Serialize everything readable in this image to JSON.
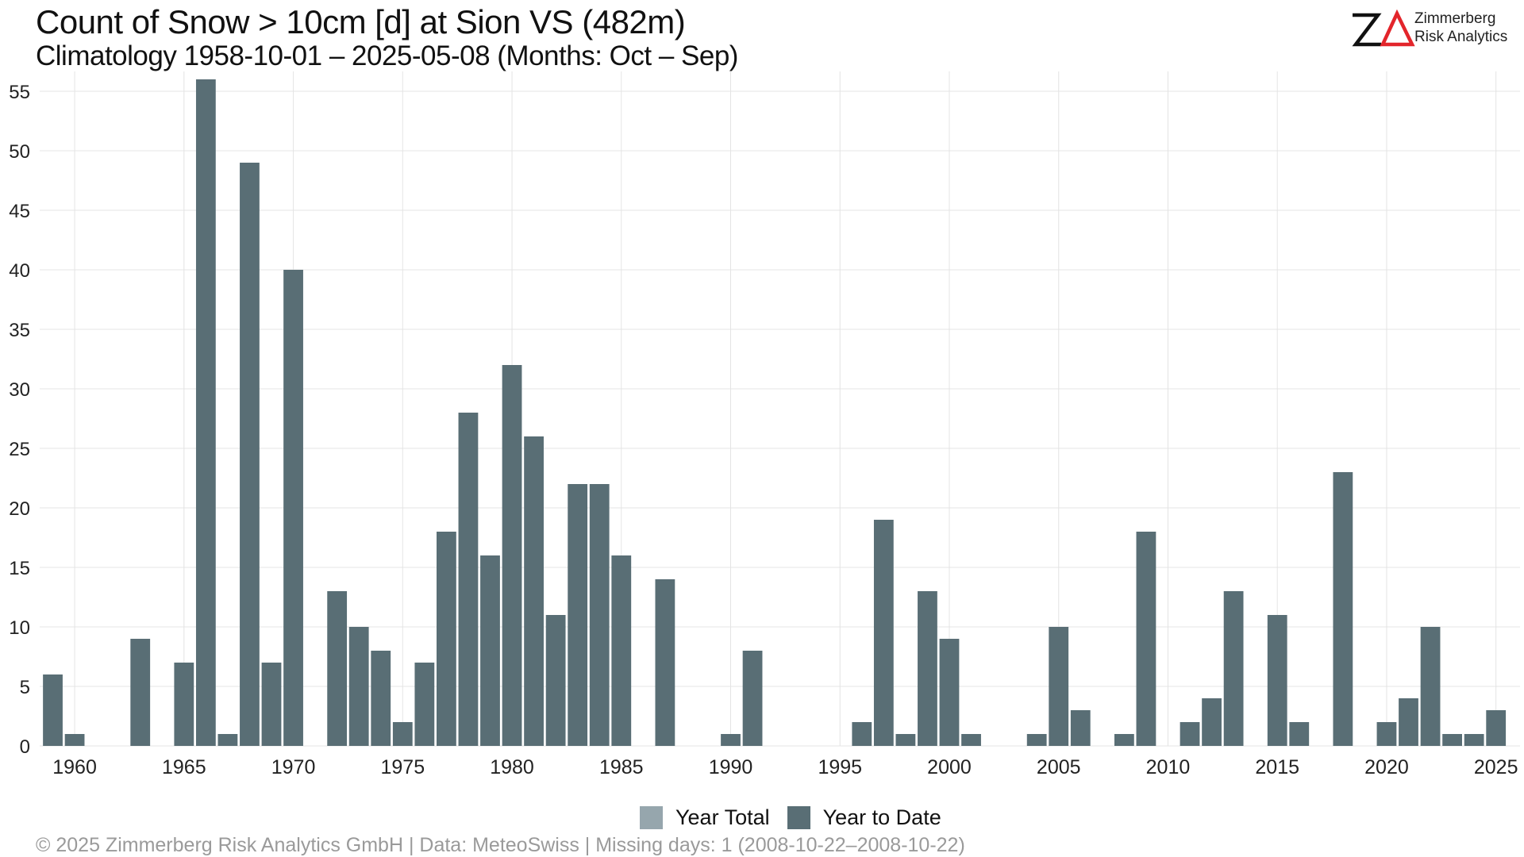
{
  "header": {
    "title": "Count of Snow > 10cm [d] at Sion  VS (482m)",
    "subtitle": "Climatology 1958-10-01 – 2025-05-08 (Months: Oct – Sep)"
  },
  "logo": {
    "line1": "Zimmerberg",
    "line2": "Risk Analytics",
    "mark_color": "#111111",
    "accent_color": "#e3252b"
  },
  "colors": {
    "year_total": "#96a6ad",
    "year_to_date": "#596e75",
    "grid": "#e4e4e4",
    "axis_text": "#222222"
  },
  "legend": {
    "placement": "bottom",
    "items": [
      {
        "label": "Year Total",
        "color": "#96a6ad"
      },
      {
        "label": "Year to Date",
        "color": "#596e75"
      }
    ]
  },
  "footer": {
    "text": "©  2025 Zimmerberg Risk Analytics GmbH | Data: MeteoSwiss | Missing days: 1 (2008-10-22–2008-10-22)"
  },
  "chart_data": {
    "type": "bar",
    "title": "Count of Snow > 10cm [d] at Sion  VS (482m)",
    "subtitle": "Climatology 1958-10-01 – 2025-05-08 (Months: Oct – Sep)",
    "xlabel": "",
    "ylabel": "",
    "xlim": [
      1958.4,
      2026.1
    ],
    "ylim": [
      0,
      56
    ],
    "x_ticks": [
      1960,
      1965,
      1970,
      1975,
      1980,
      1985,
      1990,
      1995,
      2000,
      2005,
      2010,
      2015,
      2020,
      2025
    ],
    "y_ticks": [
      0,
      5,
      10,
      15,
      20,
      25,
      30,
      35,
      40,
      45,
      50,
      55
    ],
    "grid": true,
    "legend_placement": "bottom",
    "series": [
      {
        "name": "Year to Date",
        "color": "#596e75",
        "points": [
          {
            "x": 1959,
            "y": 6
          },
          {
            "x": 1960,
            "y": 1
          },
          {
            "x": 1963,
            "y": 9
          },
          {
            "x": 1965,
            "y": 7
          },
          {
            "x": 1966,
            "y": 56
          },
          {
            "x": 1967,
            "y": 1
          },
          {
            "x": 1968,
            "y": 49
          },
          {
            "x": 1969,
            "y": 7
          },
          {
            "x": 1970,
            "y": 40
          },
          {
            "x": 1972,
            "y": 13
          },
          {
            "x": 1973,
            "y": 10
          },
          {
            "x": 1974,
            "y": 8
          },
          {
            "x": 1975,
            "y": 2
          },
          {
            "x": 1976,
            "y": 7
          },
          {
            "x": 1977,
            "y": 18
          },
          {
            "x": 1978,
            "y": 28
          },
          {
            "x": 1979,
            "y": 16
          },
          {
            "x": 1980,
            "y": 32
          },
          {
            "x": 1981,
            "y": 26
          },
          {
            "x": 1982,
            "y": 11
          },
          {
            "x": 1983,
            "y": 22
          },
          {
            "x": 1984,
            "y": 22
          },
          {
            "x": 1985,
            "y": 16
          },
          {
            "x": 1987,
            "y": 14
          },
          {
            "x": 1990,
            "y": 1
          },
          {
            "x": 1991,
            "y": 8
          },
          {
            "x": 1996,
            "y": 2
          },
          {
            "x": 1997,
            "y": 19
          },
          {
            "x": 1998,
            "y": 1
          },
          {
            "x": 1999,
            "y": 13
          },
          {
            "x": 2000,
            "y": 9
          },
          {
            "x": 2001,
            "y": 1
          },
          {
            "x": 2004,
            "y": 1
          },
          {
            "x": 2005,
            "y": 10
          },
          {
            "x": 2006,
            "y": 3
          },
          {
            "x": 2008,
            "y": 1
          },
          {
            "x": 2009,
            "y": 18
          },
          {
            "x": 2011,
            "y": 2
          },
          {
            "x": 2012,
            "y": 4
          },
          {
            "x": 2013,
            "y": 13
          },
          {
            "x": 2015,
            "y": 11
          },
          {
            "x": 2016,
            "y": 2
          },
          {
            "x": 2018,
            "y": 23
          },
          {
            "x": 2020,
            "y": 2
          },
          {
            "x": 2021,
            "y": 4
          },
          {
            "x": 2022,
            "y": 10
          },
          {
            "x": 2023,
            "y": 1
          },
          {
            "x": 2024,
            "y": 1
          },
          {
            "x": 2025,
            "y": 3
          }
        ]
      }
    ]
  }
}
